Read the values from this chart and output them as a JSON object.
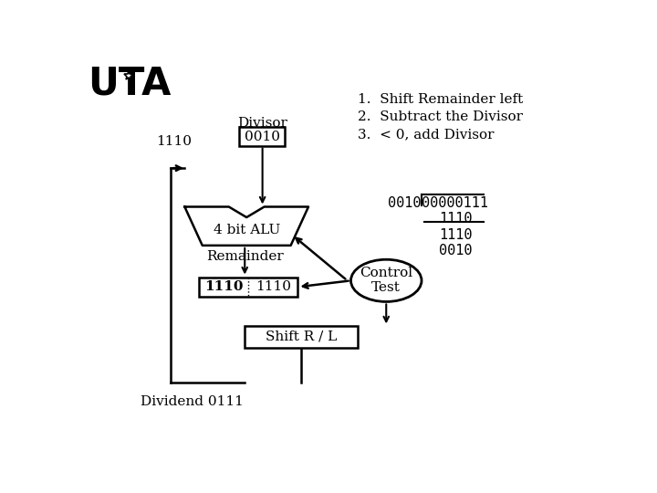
{
  "bg_color": "#ffffff",
  "steps": [
    "1.  Shift Remainder left",
    "2.  Subtract the Divisor",
    "3.  < 0, add Divisor"
  ],
  "divisor_label": "Divisor",
  "dividend_label": "Dividend 0111",
  "alu_label": "4 bit ALU",
  "remainder_label": "Remainder",
  "shift_label": "Shift R / L",
  "control_label": "Control\nTest",
  "value_label1": "1110"
}
